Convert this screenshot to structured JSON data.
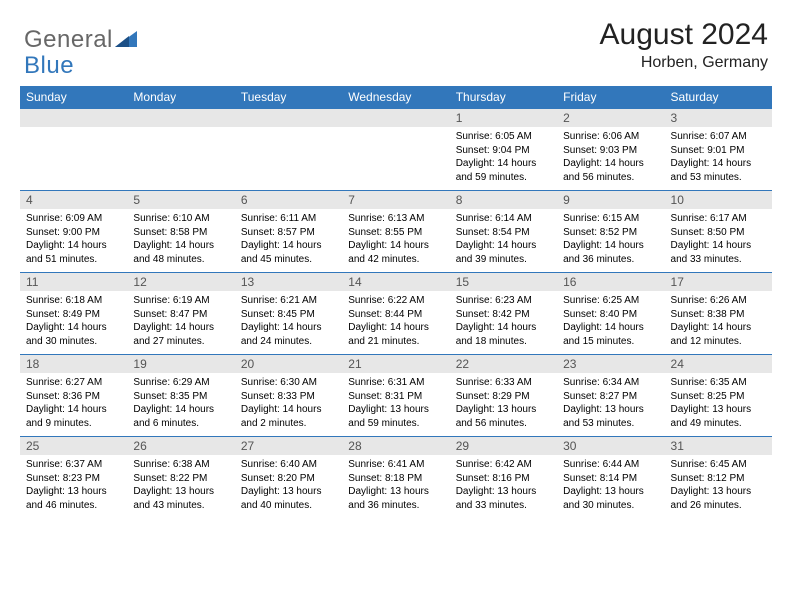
{
  "logo": {
    "general": "General",
    "blue": "Blue"
  },
  "title": "August 2024",
  "location": "Horben, Germany",
  "colors": {
    "header_bg": "#3277bb",
    "daynum_bg": "#e7e7e7",
    "logo_gray": "#676767",
    "logo_blue": "#3277bb"
  },
  "day_headers": [
    "Sunday",
    "Monday",
    "Tuesday",
    "Wednesday",
    "Thursday",
    "Friday",
    "Saturday"
  ],
  "weeks": [
    {
      "nums": [
        "",
        "",
        "",
        "",
        "1",
        "2",
        "3"
      ],
      "cells": [
        null,
        null,
        null,
        null,
        {
          "sunrise": "Sunrise: 6:05 AM",
          "sunset": "Sunset: 9:04 PM",
          "daylight": "Daylight: 14 hours and 59 minutes."
        },
        {
          "sunrise": "Sunrise: 6:06 AM",
          "sunset": "Sunset: 9:03 PM",
          "daylight": "Daylight: 14 hours and 56 minutes."
        },
        {
          "sunrise": "Sunrise: 6:07 AM",
          "sunset": "Sunset: 9:01 PM",
          "daylight": "Daylight: 14 hours and 53 minutes."
        }
      ]
    },
    {
      "nums": [
        "4",
        "5",
        "6",
        "7",
        "8",
        "9",
        "10"
      ],
      "cells": [
        {
          "sunrise": "Sunrise: 6:09 AM",
          "sunset": "Sunset: 9:00 PM",
          "daylight": "Daylight: 14 hours and 51 minutes."
        },
        {
          "sunrise": "Sunrise: 6:10 AM",
          "sunset": "Sunset: 8:58 PM",
          "daylight": "Daylight: 14 hours and 48 minutes."
        },
        {
          "sunrise": "Sunrise: 6:11 AM",
          "sunset": "Sunset: 8:57 PM",
          "daylight": "Daylight: 14 hours and 45 minutes."
        },
        {
          "sunrise": "Sunrise: 6:13 AM",
          "sunset": "Sunset: 8:55 PM",
          "daylight": "Daylight: 14 hours and 42 minutes."
        },
        {
          "sunrise": "Sunrise: 6:14 AM",
          "sunset": "Sunset: 8:54 PM",
          "daylight": "Daylight: 14 hours and 39 minutes."
        },
        {
          "sunrise": "Sunrise: 6:15 AM",
          "sunset": "Sunset: 8:52 PM",
          "daylight": "Daylight: 14 hours and 36 minutes."
        },
        {
          "sunrise": "Sunrise: 6:17 AM",
          "sunset": "Sunset: 8:50 PM",
          "daylight": "Daylight: 14 hours and 33 minutes."
        }
      ]
    },
    {
      "nums": [
        "11",
        "12",
        "13",
        "14",
        "15",
        "16",
        "17"
      ],
      "cells": [
        {
          "sunrise": "Sunrise: 6:18 AM",
          "sunset": "Sunset: 8:49 PM",
          "daylight": "Daylight: 14 hours and 30 minutes."
        },
        {
          "sunrise": "Sunrise: 6:19 AM",
          "sunset": "Sunset: 8:47 PM",
          "daylight": "Daylight: 14 hours and 27 minutes."
        },
        {
          "sunrise": "Sunrise: 6:21 AM",
          "sunset": "Sunset: 8:45 PM",
          "daylight": "Daylight: 14 hours and 24 minutes."
        },
        {
          "sunrise": "Sunrise: 6:22 AM",
          "sunset": "Sunset: 8:44 PM",
          "daylight": "Daylight: 14 hours and 21 minutes."
        },
        {
          "sunrise": "Sunrise: 6:23 AM",
          "sunset": "Sunset: 8:42 PM",
          "daylight": "Daylight: 14 hours and 18 minutes."
        },
        {
          "sunrise": "Sunrise: 6:25 AM",
          "sunset": "Sunset: 8:40 PM",
          "daylight": "Daylight: 14 hours and 15 minutes."
        },
        {
          "sunrise": "Sunrise: 6:26 AM",
          "sunset": "Sunset: 8:38 PM",
          "daylight": "Daylight: 14 hours and 12 minutes."
        }
      ]
    },
    {
      "nums": [
        "18",
        "19",
        "20",
        "21",
        "22",
        "23",
        "24"
      ],
      "cells": [
        {
          "sunrise": "Sunrise: 6:27 AM",
          "sunset": "Sunset: 8:36 PM",
          "daylight": "Daylight: 14 hours and 9 minutes."
        },
        {
          "sunrise": "Sunrise: 6:29 AM",
          "sunset": "Sunset: 8:35 PM",
          "daylight": "Daylight: 14 hours and 6 minutes."
        },
        {
          "sunrise": "Sunrise: 6:30 AM",
          "sunset": "Sunset: 8:33 PM",
          "daylight": "Daylight: 14 hours and 2 minutes."
        },
        {
          "sunrise": "Sunrise: 6:31 AM",
          "sunset": "Sunset: 8:31 PM",
          "daylight": "Daylight: 13 hours and 59 minutes."
        },
        {
          "sunrise": "Sunrise: 6:33 AM",
          "sunset": "Sunset: 8:29 PM",
          "daylight": "Daylight: 13 hours and 56 minutes."
        },
        {
          "sunrise": "Sunrise: 6:34 AM",
          "sunset": "Sunset: 8:27 PM",
          "daylight": "Daylight: 13 hours and 53 minutes."
        },
        {
          "sunrise": "Sunrise: 6:35 AM",
          "sunset": "Sunset: 8:25 PM",
          "daylight": "Daylight: 13 hours and 49 minutes."
        }
      ]
    },
    {
      "nums": [
        "25",
        "26",
        "27",
        "28",
        "29",
        "30",
        "31"
      ],
      "cells": [
        {
          "sunrise": "Sunrise: 6:37 AM",
          "sunset": "Sunset: 8:23 PM",
          "daylight": "Daylight: 13 hours and 46 minutes."
        },
        {
          "sunrise": "Sunrise: 6:38 AM",
          "sunset": "Sunset: 8:22 PM",
          "daylight": "Daylight: 13 hours and 43 minutes."
        },
        {
          "sunrise": "Sunrise: 6:40 AM",
          "sunset": "Sunset: 8:20 PM",
          "daylight": "Daylight: 13 hours and 40 minutes."
        },
        {
          "sunrise": "Sunrise: 6:41 AM",
          "sunset": "Sunset: 8:18 PM",
          "daylight": "Daylight: 13 hours and 36 minutes."
        },
        {
          "sunrise": "Sunrise: 6:42 AM",
          "sunset": "Sunset: 8:16 PM",
          "daylight": "Daylight: 13 hours and 33 minutes."
        },
        {
          "sunrise": "Sunrise: 6:44 AM",
          "sunset": "Sunset: 8:14 PM",
          "daylight": "Daylight: 13 hours and 30 minutes."
        },
        {
          "sunrise": "Sunrise: 6:45 AM",
          "sunset": "Sunset: 8:12 PM",
          "daylight": "Daylight: 13 hours and 26 minutes."
        }
      ]
    }
  ]
}
